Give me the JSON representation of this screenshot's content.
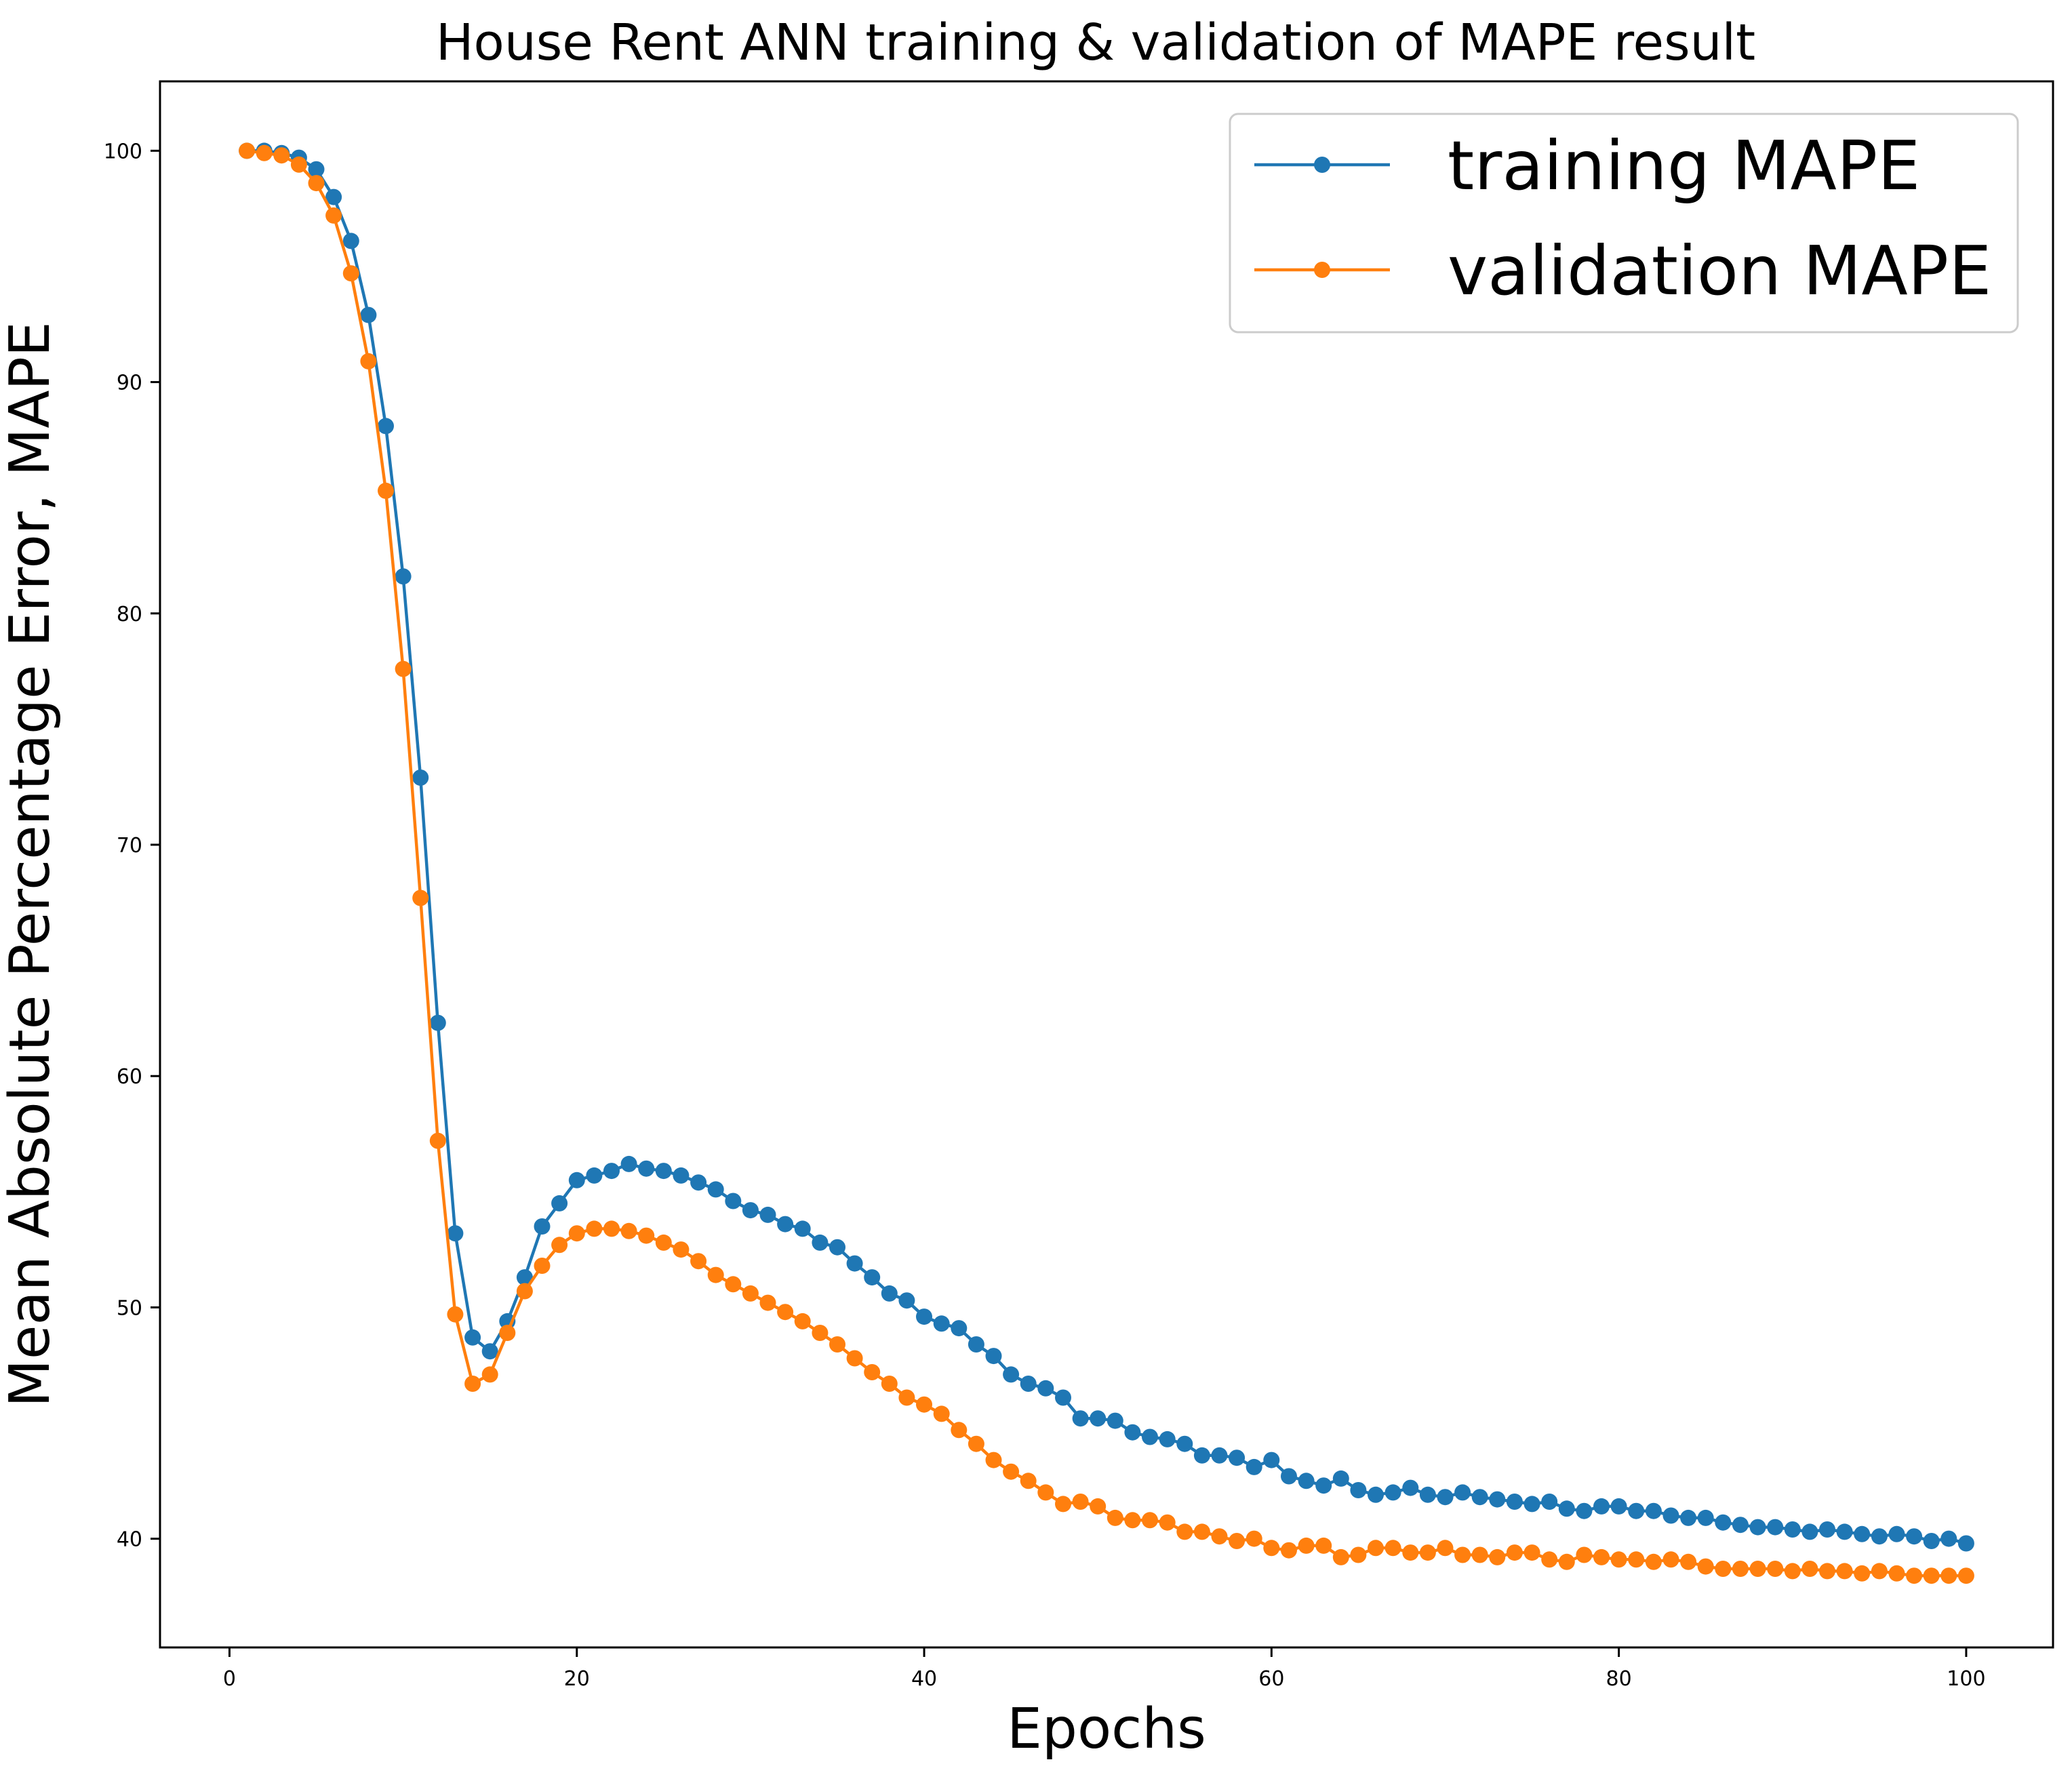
{
  "chart_data": {
    "type": "line",
    "title": "House Rent ANN training & validation of MAPE result",
    "xlabel": "Epochs",
    "ylabel": "Mean Absolute Percentage Error, MAPE",
    "xlim": [
      -4,
      105
    ],
    "ylim": [
      35.3,
      103.0
    ],
    "xticks": [
      0,
      20,
      40,
      60,
      80,
      100
    ],
    "yticks": [
      40,
      50,
      60,
      70,
      80,
      90,
      100
    ],
    "xtick_labels": [
      "0",
      "20",
      "40",
      "60",
      "80",
      "100"
    ],
    "ytick_labels": [
      "40",
      "50",
      "60",
      "70",
      "80",
      "90",
      "100"
    ],
    "grid": false,
    "legend_position": "top-right",
    "x": [
      1,
      2,
      3,
      4,
      5,
      6,
      7,
      8,
      9,
      10,
      11,
      12,
      13,
      14,
      15,
      16,
      17,
      18,
      19,
      20,
      21,
      22,
      23,
      24,
      25,
      26,
      27,
      28,
      29,
      30,
      31,
      32,
      33,
      34,
      35,
      36,
      37,
      38,
      39,
      40,
      41,
      42,
      43,
      44,
      45,
      46,
      47,
      48,
      49,
      50,
      51,
      52,
      53,
      54,
      55,
      56,
      57,
      58,
      59,
      60,
      61,
      62,
      63,
      64,
      65,
      66,
      67,
      68,
      69,
      70,
      71,
      72,
      73,
      74,
      75,
      76,
      77,
      78,
      79,
      80,
      81,
      82,
      83,
      84,
      85,
      86,
      87,
      88,
      89,
      90,
      91,
      92,
      93,
      94,
      95,
      96,
      97,
      98,
      99,
      100
    ],
    "series": [
      {
        "name": "training MAPE",
        "color": "#1f77b4",
        "values": [
          100.0,
          100.0,
          99.9,
          99.7,
          99.2,
          98.0,
          96.1,
          92.9,
          88.1,
          81.6,
          72.9,
          62.3,
          53.2,
          48.7,
          48.1,
          49.4,
          51.3,
          53.5,
          54.5,
          55.5,
          55.7,
          55.9,
          56.2,
          56.0,
          55.9,
          55.7,
          55.4,
          55.1,
          54.6,
          54.2,
          54.0,
          53.6,
          53.4,
          52.8,
          52.6,
          51.9,
          51.3,
          50.6,
          50.3,
          49.6,
          49.3,
          49.1,
          48.4,
          47.9,
          47.1,
          46.7,
          46.5,
          46.1,
          45.2,
          45.2,
          45.1,
          44.6,
          44.4,
          44.3,
          44.1,
          43.6,
          43.6,
          43.5,
          43.1,
          43.4,
          42.7,
          42.5,
          42.3,
          42.6,
          42.1,
          41.9,
          42.0,
          42.2,
          41.9,
          41.8,
          42.0,
          41.8,
          41.7,
          41.6,
          41.5,
          41.6,
          41.3,
          41.2,
          41.4,
          41.4,
          41.2,
          41.2,
          41.0,
          40.9,
          40.9,
          40.7,
          40.6,
          40.5,
          40.5,
          40.4,
          40.3,
          40.4,
          40.3,
          40.2,
          40.1,
          40.2,
          40.1,
          39.9,
          40.0,
          39.8
        ]
      },
      {
        "name": "validation MAPE",
        "color": "#ff7f0e",
        "values": [
          100.0,
          99.9,
          99.8,
          99.4,
          98.6,
          97.2,
          94.7,
          90.9,
          85.3,
          77.6,
          67.7,
          57.2,
          49.7,
          46.7,
          47.1,
          48.9,
          50.7,
          51.8,
          52.7,
          53.2,
          53.4,
          53.4,
          53.3,
          53.1,
          52.8,
          52.5,
          52.0,
          51.4,
          51.0,
          50.6,
          50.2,
          49.8,
          49.4,
          48.9,
          48.4,
          47.8,
          47.2,
          46.7,
          46.1,
          45.8,
          45.4,
          44.7,
          44.1,
          43.4,
          42.9,
          42.5,
          42.0,
          41.5,
          41.6,
          41.4,
          40.9,
          40.8,
          40.8,
          40.7,
          40.3,
          40.3,
          40.1,
          39.9,
          40.0,
          39.6,
          39.5,
          39.7,
          39.7,
          39.2,
          39.3,
          39.6,
          39.6,
          39.4,
          39.4,
          39.6,
          39.3,
          39.3,
          39.2,
          39.4,
          39.4,
          39.1,
          39.0,
          39.3,
          39.2,
          39.1,
          39.1,
          39.0,
          39.1,
          39.0,
          38.8,
          38.7,
          38.7,
          38.7,
          38.7,
          38.6,
          38.7,
          38.6,
          38.6,
          38.5,
          38.6,
          38.5,
          38.4,
          38.4,
          38.4,
          38.4
        ]
      }
    ]
  }
}
